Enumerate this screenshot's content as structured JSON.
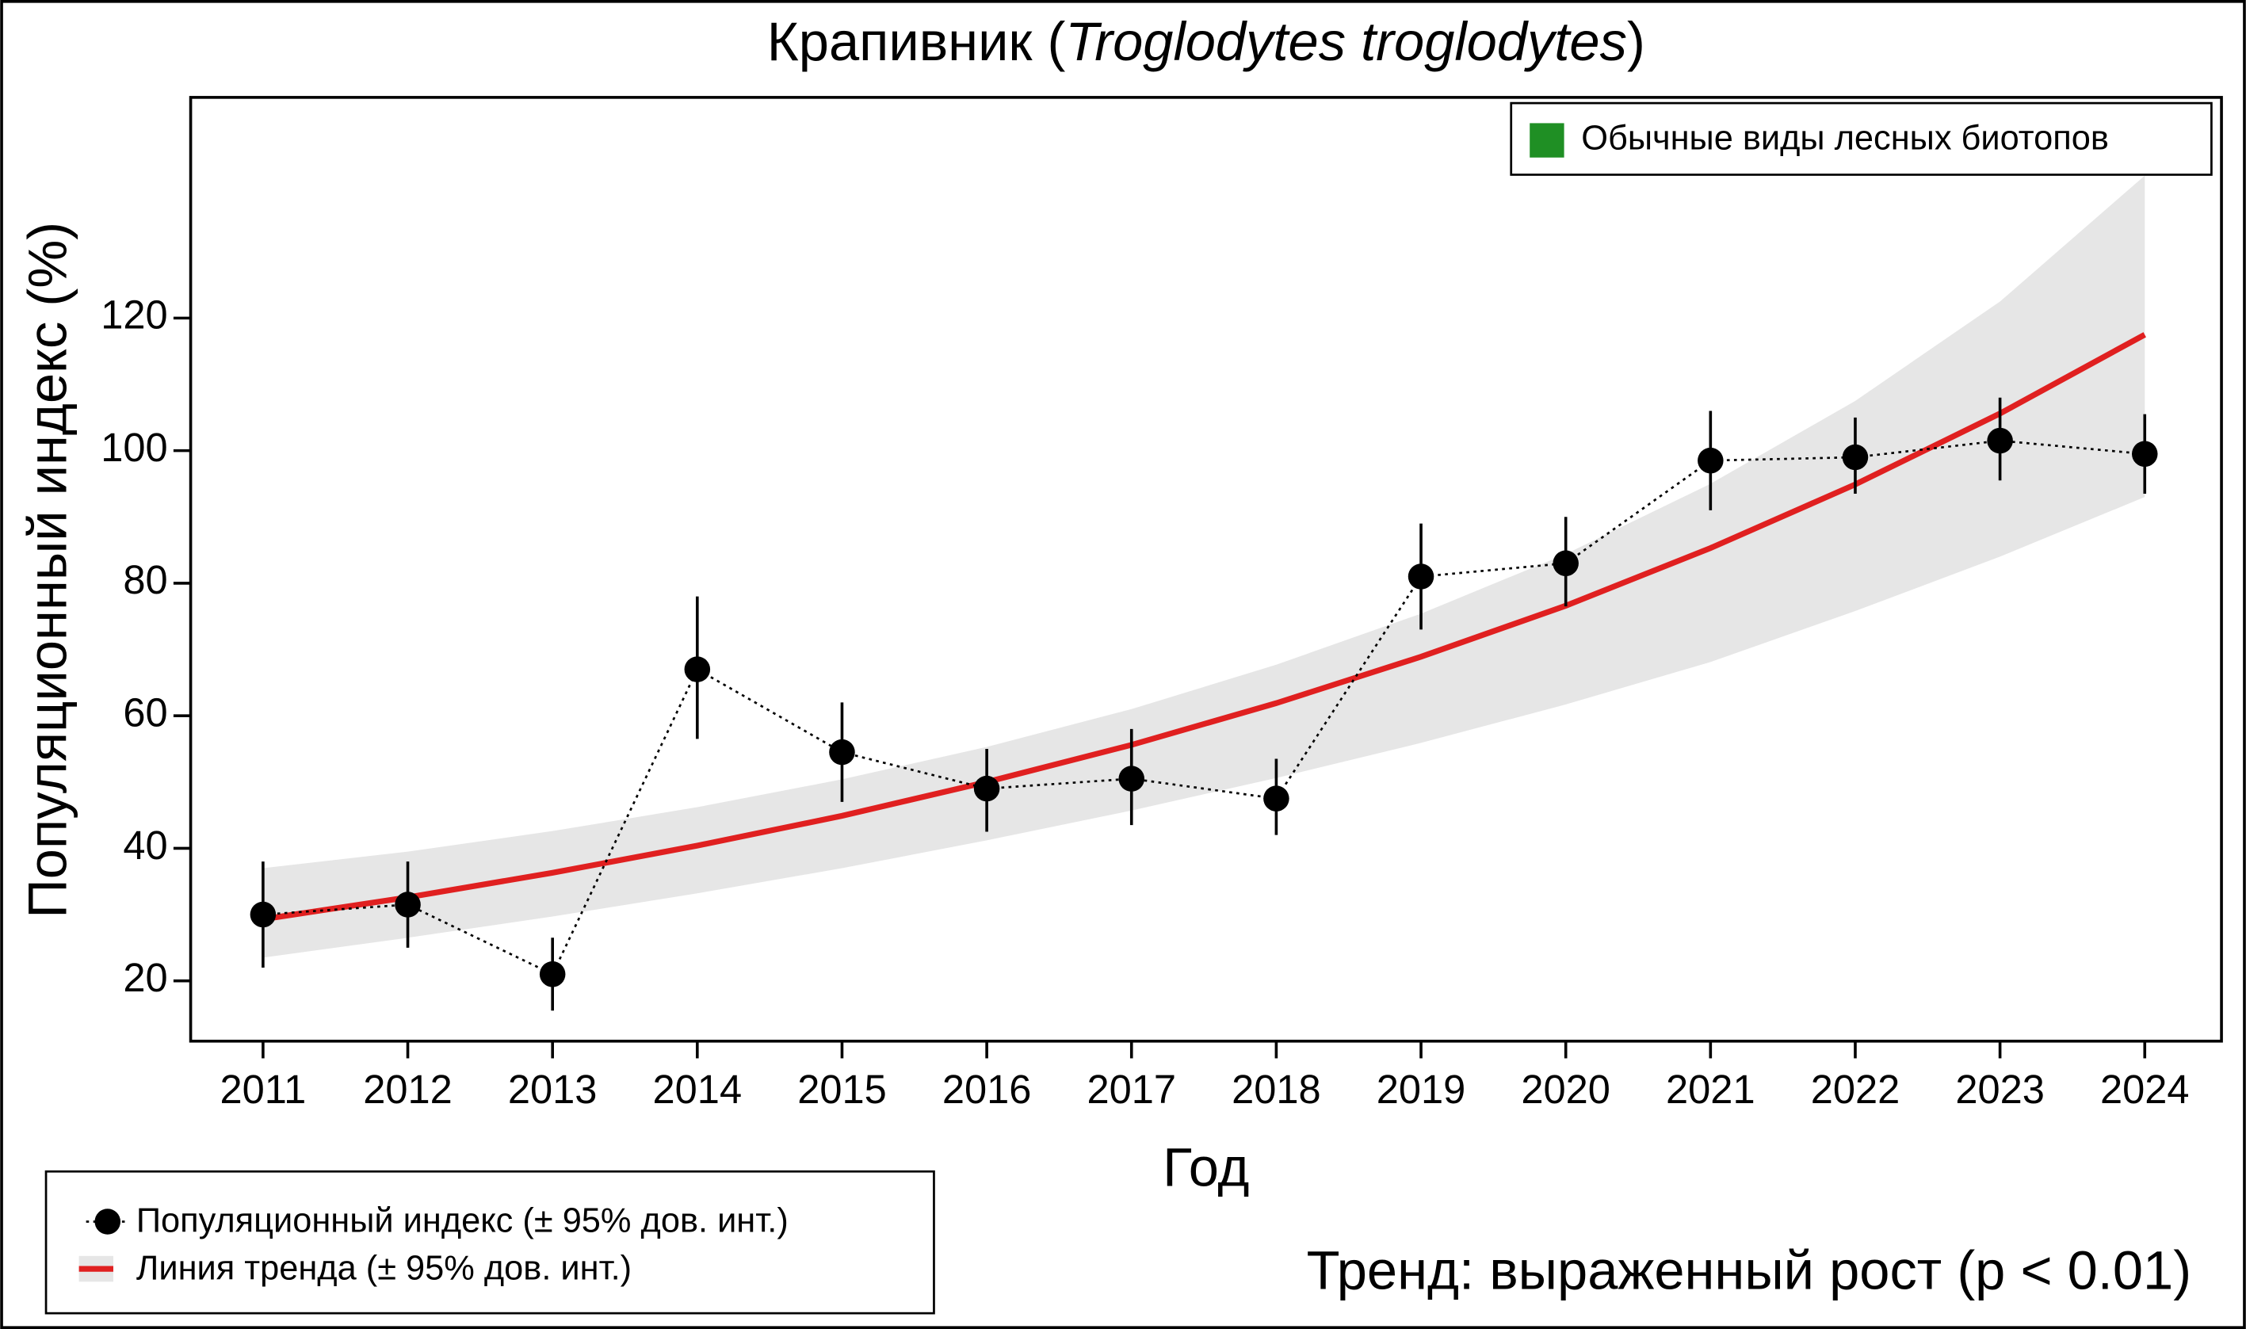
{
  "chart_data": {
    "type": "line",
    "title_parts": [
      "Крапивник (",
      "Troglodytes troglodytes",
      ")"
    ],
    "x_label": "Год",
    "y_label": "Популяционный индекс (%)",
    "group_legend": {
      "label": "Обычные виды лесных биотопов",
      "color": "#1f8f24"
    },
    "trend_text": {
      "text": "Тренд: выраженный рост (p < 0.01)",
      "color": "#1f8f24"
    },
    "x": [
      2011,
      2012,
      2013,
      2014,
      2015,
      2016,
      2017,
      2018,
      2019,
      2020,
      2021,
      2022,
      2023,
      2024
    ],
    "xlim": [
      2010.5,
      2024.53
    ],
    "xticks": [
      2011,
      2012,
      2013,
      2014,
      2015,
      2016,
      2017,
      2018,
      2019,
      2020,
      2021,
      2022,
      2023,
      2024
    ],
    "ylim": [
      10.9,
      153.3
    ],
    "yticks": [
      20,
      40,
      60,
      80,
      100,
      120
    ],
    "legend_position": "bottom-left",
    "series": [
      {
        "name": "Популяционный индекс (± 95% дов. инт.)",
        "color": "#000000",
        "values": [
          30,
          31.5,
          21,
          67,
          54.5,
          49,
          50.5,
          47.5,
          81,
          83,
          98.5,
          99,
          101.5,
          99.5
        ],
        "ci_low": [
          22,
          25,
          15.5,
          56.5,
          47,
          42.5,
          43.5,
          42,
          73,
          76.5,
          91,
          93.5,
          95.5,
          93.5
        ],
        "ci_high": [
          38,
          38,
          26.5,
          78,
          62,
          55,
          58,
          53.5,
          89,
          90,
          106,
          105,
          108,
          105.5
        ]
      },
      {
        "name": "Линия тренда (± 95% дов. инт.)",
        "color": "#e02020",
        "band_color": "#e6e6e6",
        "values": [
          29.3,
          32.6,
          36.3,
          40.4,
          44.9,
          50.0,
          55.6,
          61.9,
          68.9,
          76.6,
          85.3,
          94.9,
          105.6,
          117.5
        ],
        "lower": [
          23.5,
          26.5,
          29.7,
          33.2,
          37.0,
          41.2,
          45.7,
          50.6,
          55.9,
          61.7,
          68.1,
          75.8,
          84.0,
          93.0
        ],
        "upper": [
          37,
          39.5,
          42.6,
          46.2,
          50.4,
          55.3,
          61.0,
          67.7,
          75.4,
          84.4,
          95.0,
          107.5,
          122.5,
          141.5
        ]
      }
    ]
  }
}
